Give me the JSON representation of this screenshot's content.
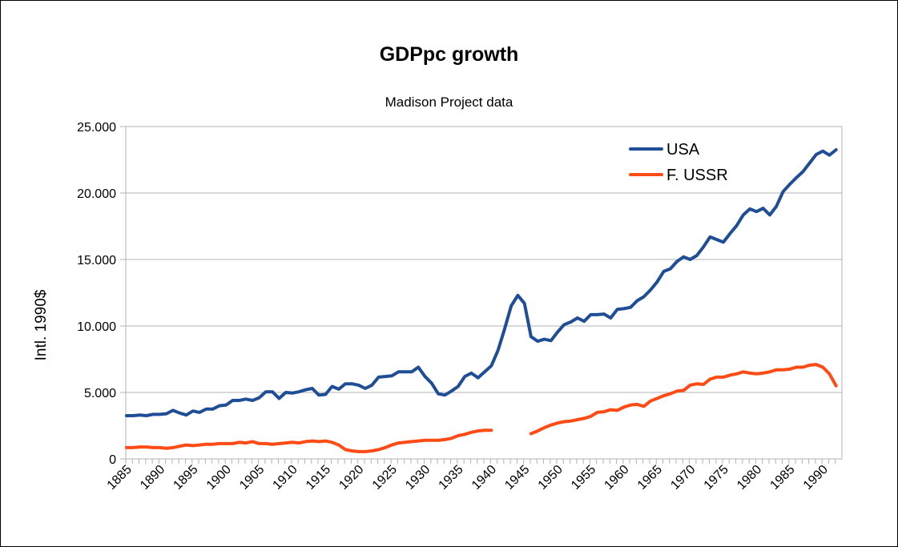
{
  "chart_data": {
    "type": "line",
    "title": "GDPpc growth",
    "subtitle": "Madison Project data",
    "ylabel": "Intl. 1990$",
    "xlabel": "",
    "ylim": [
      0,
      25000
    ],
    "xlim": [
      1885,
      1991
    ],
    "y_ticks": [
      0,
      5000,
      10000,
      15000,
      20000,
      25000
    ],
    "y_tick_labels": [
      "0",
      "5.000",
      "10.000",
      "15.000",
      "20.000",
      "25.000"
    ],
    "x_tick_labels": [
      "1885",
      "1890",
      "1895",
      "1900",
      "1905",
      "1910",
      "1915",
      "1920",
      "1925",
      "1930",
      "1935",
      "1940",
      "1945",
      "1950",
      "1955",
      "1960",
      "1965",
      "1970",
      "1975",
      "1980",
      "1985",
      "1990"
    ],
    "grid": "horizontal",
    "legend_position": "top-right",
    "series": [
      {
        "name": "USA",
        "color": "#1f4e96",
        "points": [
          [
            1885,
            3250
          ],
          [
            1886,
            3250
          ],
          [
            1887,
            3300
          ],
          [
            1888,
            3250
          ],
          [
            1889,
            3350
          ],
          [
            1890,
            3350
          ],
          [
            1891,
            3400
          ],
          [
            1892,
            3650
          ],
          [
            1893,
            3450
          ],
          [
            1894,
            3300
          ],
          [
            1895,
            3600
          ],
          [
            1896,
            3500
          ],
          [
            1897,
            3750
          ],
          [
            1898,
            3750
          ],
          [
            1899,
            4000
          ],
          [
            1900,
            4050
          ],
          [
            1901,
            4400
          ],
          [
            1902,
            4400
          ],
          [
            1903,
            4500
          ],
          [
            1904,
            4400
          ],
          [
            1905,
            4600
          ],
          [
            1906,
            5050
          ],
          [
            1907,
            5050
          ],
          [
            1908,
            4550
          ],
          [
            1909,
            5000
          ],
          [
            1910,
            4950
          ],
          [
            1911,
            5050
          ],
          [
            1912,
            5200
          ],
          [
            1913,
            5300
          ],
          [
            1914,
            4800
          ],
          [
            1915,
            4850
          ],
          [
            1916,
            5450
          ],
          [
            1917,
            5250
          ],
          [
            1918,
            5650
          ],
          [
            1919,
            5650
          ],
          [
            1920,
            5550
          ],
          [
            1921,
            5300
          ],
          [
            1922,
            5550
          ],
          [
            1923,
            6150
          ],
          [
            1924,
            6200
          ],
          [
            1925,
            6250
          ],
          [
            1926,
            6550
          ],
          [
            1927,
            6550
          ],
          [
            1928,
            6550
          ],
          [
            1929,
            6900
          ],
          [
            1930,
            6200
          ],
          [
            1931,
            5700
          ],
          [
            1932,
            4900
          ],
          [
            1933,
            4800
          ],
          [
            1934,
            5100
          ],
          [
            1935,
            5450
          ],
          [
            1936,
            6200
          ],
          [
            1937,
            6450
          ],
          [
            1938,
            6100
          ],
          [
            1939,
            6550
          ],
          [
            1940,
            7000
          ],
          [
            1941,
            8150
          ],
          [
            1942,
            9750
          ],
          [
            1943,
            11500
          ],
          [
            1944,
            12300
          ],
          [
            1945,
            11700
          ],
          [
            1946,
            9200
          ],
          [
            1947,
            8850
          ],
          [
            1948,
            9000
          ],
          [
            1949,
            8900
          ],
          [
            1950,
            9550
          ],
          [
            1951,
            10100
          ],
          [
            1952,
            10300
          ],
          [
            1953,
            10600
          ],
          [
            1954,
            10350
          ],
          [
            1955,
            10850
          ],
          [
            1956,
            10850
          ],
          [
            1957,
            10900
          ],
          [
            1958,
            10600
          ],
          [
            1959,
            11250
          ],
          [
            1960,
            11300
          ],
          [
            1961,
            11400
          ],
          [
            1962,
            11900
          ],
          [
            1963,
            12200
          ],
          [
            1964,
            12700
          ],
          [
            1965,
            13300
          ],
          [
            1966,
            14100
          ],
          [
            1967,
            14300
          ],
          [
            1968,
            14850
          ],
          [
            1969,
            15200
          ],
          [
            1970,
            15000
          ],
          [
            1971,
            15300
          ],
          [
            1972,
            15950
          ],
          [
            1973,
            16700
          ],
          [
            1974,
            16500
          ],
          [
            1975,
            16300
          ],
          [
            1976,
            16950
          ],
          [
            1977,
            17550
          ],
          [
            1978,
            18350
          ],
          [
            1979,
            18800
          ],
          [
            1980,
            18600
          ],
          [
            1981,
            18850
          ],
          [
            1982,
            18350
          ],
          [
            1983,
            19000
          ],
          [
            1984,
            20100
          ],
          [
            1985,
            20650
          ],
          [
            1986,
            21150
          ],
          [
            1987,
            21600
          ],
          [
            1988,
            22250
          ],
          [
            1989,
            22900
          ],
          [
            1990,
            23150
          ],
          [
            1991,
            22850
          ],
          [
            1992,
            23250
          ]
        ]
      },
      {
        "name": "F. USSR",
        "color": "#ff4b16",
        "points": [
          [
            1885,
            850
          ],
          [
            1886,
            850
          ],
          [
            1887,
            900
          ],
          [
            1888,
            900
          ],
          [
            1889,
            850
          ],
          [
            1890,
            850
          ],
          [
            1891,
            800
          ],
          [
            1892,
            850
          ],
          [
            1893,
            950
          ],
          [
            1894,
            1050
          ],
          [
            1895,
            1000
          ],
          [
            1896,
            1050
          ],
          [
            1897,
            1100
          ],
          [
            1898,
            1100
          ],
          [
            1899,
            1150
          ],
          [
            1900,
            1150
          ],
          [
            1901,
            1150
          ],
          [
            1902,
            1250
          ],
          [
            1903,
            1200
          ],
          [
            1904,
            1300
          ],
          [
            1905,
            1150
          ],
          [
            1906,
            1150
          ],
          [
            1907,
            1100
          ],
          [
            1908,
            1150
          ],
          [
            1909,
            1200
          ],
          [
            1910,
            1250
          ],
          [
            1911,
            1200
          ],
          [
            1912,
            1300
          ],
          [
            1913,
            1350
          ],
          [
            1914,
            1300
          ],
          [
            1915,
            1350
          ],
          [
            1916,
            1250
          ],
          [
            1917,
            1050
          ],
          [
            1918,
            700
          ],
          [
            1919,
            600
          ],
          [
            1920,
            550
          ],
          [
            1921,
            550
          ],
          [
            1922,
            600
          ],
          [
            1923,
            700
          ],
          [
            1924,
            850
          ],
          [
            1925,
            1050
          ],
          [
            1926,
            1200
          ],
          [
            1927,
            1250
          ],
          [
            1928,
            1300
          ],
          [
            1929,
            1350
          ],
          [
            1930,
            1400
          ],
          [
            1931,
            1400
          ],
          [
            1932,
            1400
          ],
          [
            1933,
            1450
          ],
          [
            1934,
            1550
          ],
          [
            1935,
            1750
          ],
          [
            1936,
            1850
          ],
          [
            1937,
            2000
          ],
          [
            1938,
            2100
          ],
          [
            1939,
            2150
          ],
          [
            1940,
            2150
          ],
          null,
          [
            1946,
            1900
          ],
          [
            1947,
            2100
          ],
          [
            1948,
            2350
          ],
          [
            1949,
            2550
          ],
          [
            1950,
            2700
          ],
          [
            1951,
            2800
          ],
          [
            1952,
            2850
          ],
          [
            1953,
            2950
          ],
          [
            1954,
            3050
          ],
          [
            1955,
            3200
          ],
          [
            1956,
            3500
          ],
          [
            1957,
            3550
          ],
          [
            1958,
            3700
          ],
          [
            1959,
            3650
          ],
          [
            1960,
            3900
          ],
          [
            1961,
            4050
          ],
          [
            1962,
            4100
          ],
          [
            1963,
            3950
          ],
          [
            1964,
            4350
          ],
          [
            1965,
            4550
          ],
          [
            1966,
            4750
          ],
          [
            1967,
            4900
          ],
          [
            1968,
            5100
          ],
          [
            1969,
            5150
          ],
          [
            1970,
            5550
          ],
          [
            1971,
            5650
          ],
          [
            1972,
            5600
          ],
          [
            1973,
            6000
          ],
          [
            1974,
            6150
          ],
          [
            1975,
            6150
          ],
          [
            1976,
            6300
          ],
          [
            1977,
            6400
          ],
          [
            1978,
            6550
          ],
          [
            1979,
            6450
          ],
          [
            1980,
            6400
          ],
          [
            1981,
            6450
          ],
          [
            1982,
            6550
          ],
          [
            1983,
            6700
          ],
          [
            1984,
            6700
          ],
          [
            1985,
            6750
          ],
          [
            1986,
            6900
          ],
          [
            1987,
            6900
          ],
          [
            1988,
            7050
          ],
          [
            1989,
            7100
          ],
          [
            1990,
            6900
          ],
          [
            1991,
            6400
          ],
          [
            1992,
            5500
          ]
        ]
      }
    ]
  }
}
